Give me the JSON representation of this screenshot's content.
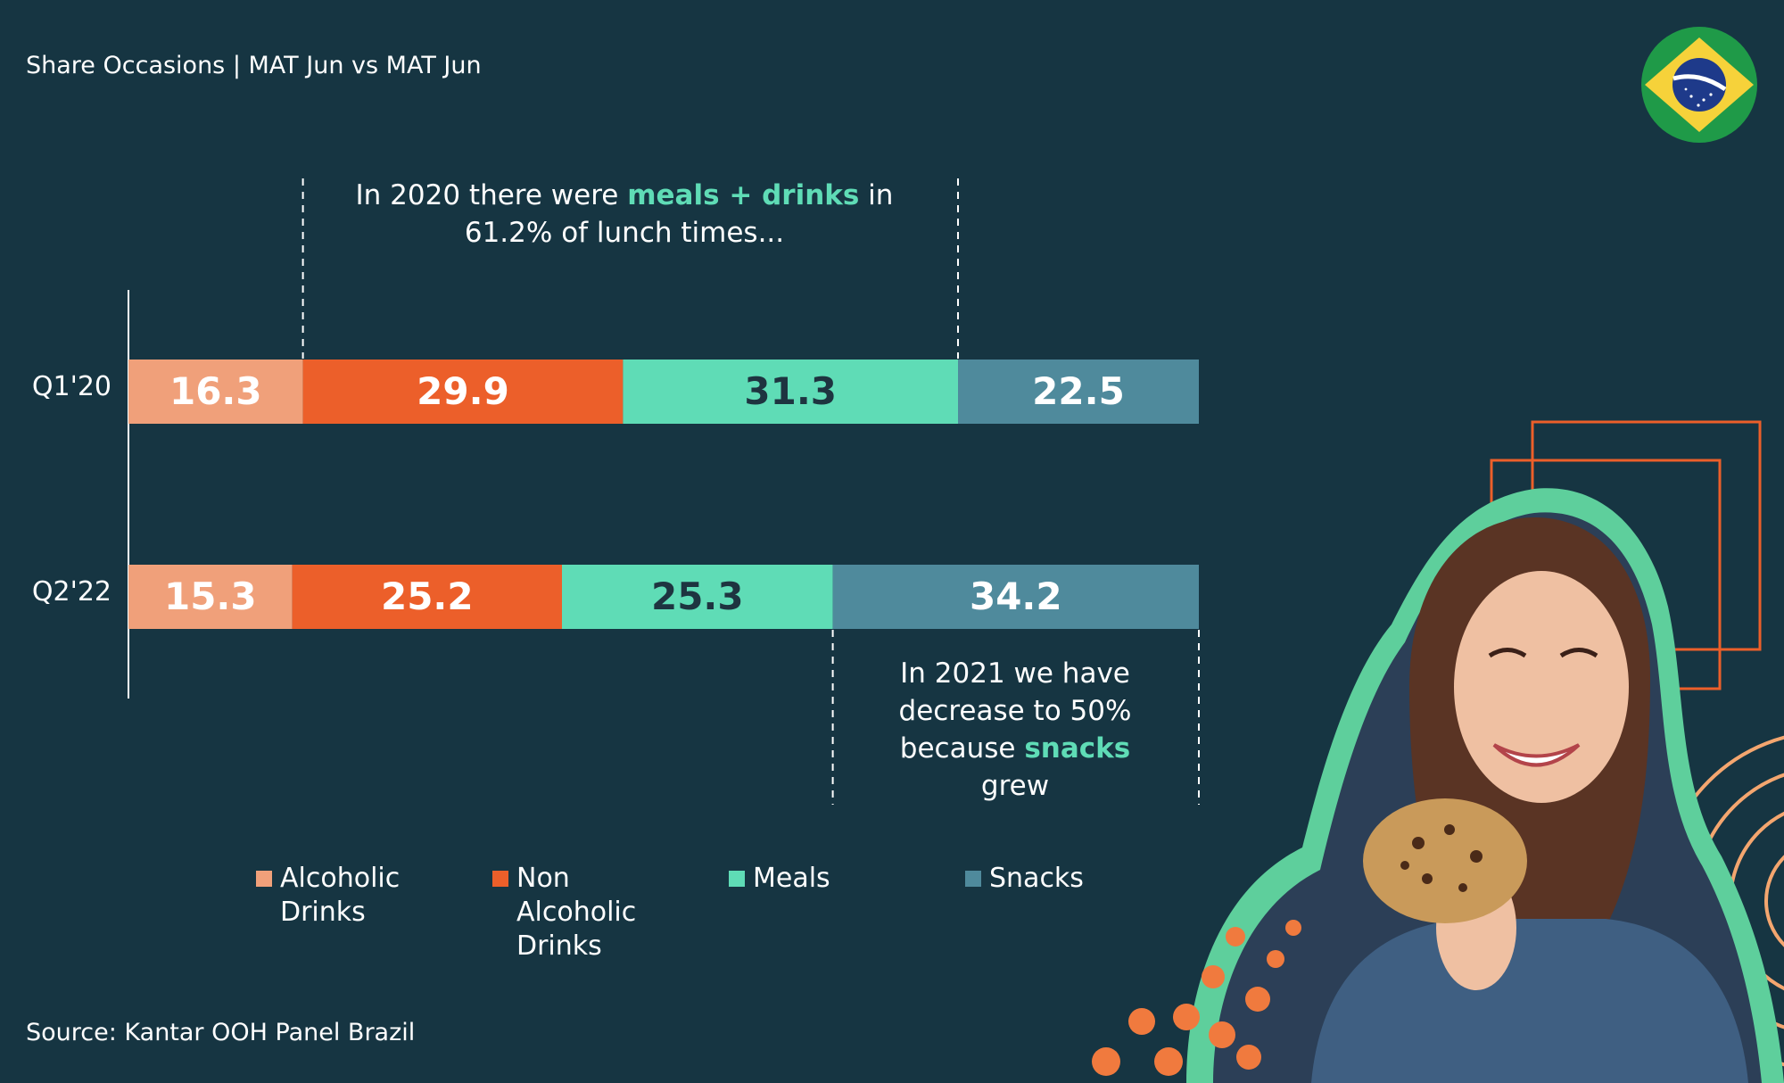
{
  "header": {
    "subtitle": "Share Occasions | MAT Jun vs MAT Jun"
  },
  "footer": {
    "source": "Source: Kantar OOH Panel Brazil"
  },
  "callouts": {
    "top": {
      "pre": "In 2020 there were ",
      "highlight": "meals + drinks",
      "post": " in",
      "line2": "61.2% of lunch times..."
    },
    "bottom": {
      "line1": "In 2021 we have",
      "line2": "decrease to 50%",
      "line3_pre": "because ",
      "highlight": "snacks",
      "line4": "grew"
    }
  },
  "colors": {
    "background": "#163542",
    "alcoholic": "#f0a07a",
    "non_alcoholic": "#ec5f2a",
    "meals": "#5fdcb6",
    "snacks": "#4f8a9c",
    "highlight": "#5fdcb6"
  },
  "decoration": {
    "flag_icon": "brazil-flag-icon",
    "photo": "smiling-woman-with-cookie-illustration"
  },
  "chart_data": {
    "type": "bar",
    "orientation": "horizontal",
    "stacked": true,
    "categories": [
      "Q1'20",
      "Q2'22"
    ],
    "series": [
      {
        "name": "Alcoholic Drinks",
        "legend": "Alcoholic\nDrinks",
        "color": "#f0a07a",
        "label_color": "#ffffff",
        "values": [
          16.3,
          15.3
        ]
      },
      {
        "name": "Non Alcoholic Drinks",
        "legend": "Non\nAlcoholic\nDrinks",
        "color": "#ec5f2a",
        "label_color": "#ffffff",
        "values": [
          29.9,
          25.2
        ]
      },
      {
        "name": "Meals",
        "legend": "Meals",
        "color": "#5fdcb6",
        "label_color": "#1e3440",
        "values": [
          31.3,
          25.3
        ]
      },
      {
        "name": "Snacks",
        "legend": "Snacks",
        "color": "#4f8a9c",
        "label_color": "#ffffff",
        "values": [
          22.5,
          34.2
        ]
      }
    ],
    "xlim": [
      0,
      100
    ],
    "legend_position": "bottom"
  }
}
